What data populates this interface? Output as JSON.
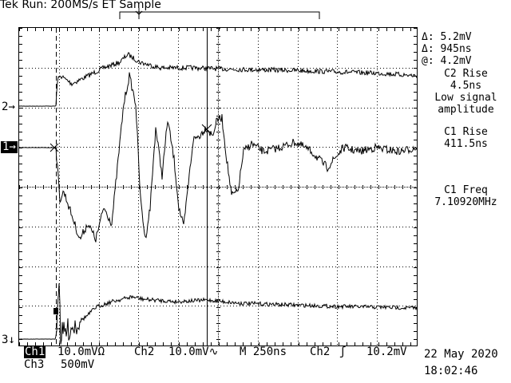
{
  "header": {
    "title": "Tek Run: 200MS/s ET Sample"
  },
  "readouts": {
    "delta_v": "Δ: 5.2mV",
    "delta_t": "Δ: 945ns",
    "at_v": "@: 4.2mV",
    "m1_line1": "C2 Rise",
    "m1_line2": "4.5ns",
    "m1_line3": "Low signal",
    "m1_line4": "amplitude",
    "m2_line1": "C1 Rise",
    "m2_line2": "411.5ns",
    "m3_line1": "C1 Freq",
    "m3_line2": "7.10920MHz"
  },
  "channel_markers": {
    "ch2": "2",
    "ch1": "1",
    "ch3": "3"
  },
  "bottom": {
    "ch1_label": "Ch1",
    "ch1_scale": "10.0mVΩ",
    "ch2_label": "Ch2",
    "ch2_scale": "10.0mV∿",
    "timebase": "M 250ns",
    "trigger_ch": "Ch2",
    "trigger_symbol": "ʃ",
    "trigger_level": "10.2mV",
    "ch3_label": "Ch3",
    "ch3_scale": "500mV",
    "date": "22 May 2020",
    "time": "18:02:46"
  },
  "colors": {
    "trace": "#000000",
    "grid": "#000000",
    "background": "#ffffff"
  }
}
